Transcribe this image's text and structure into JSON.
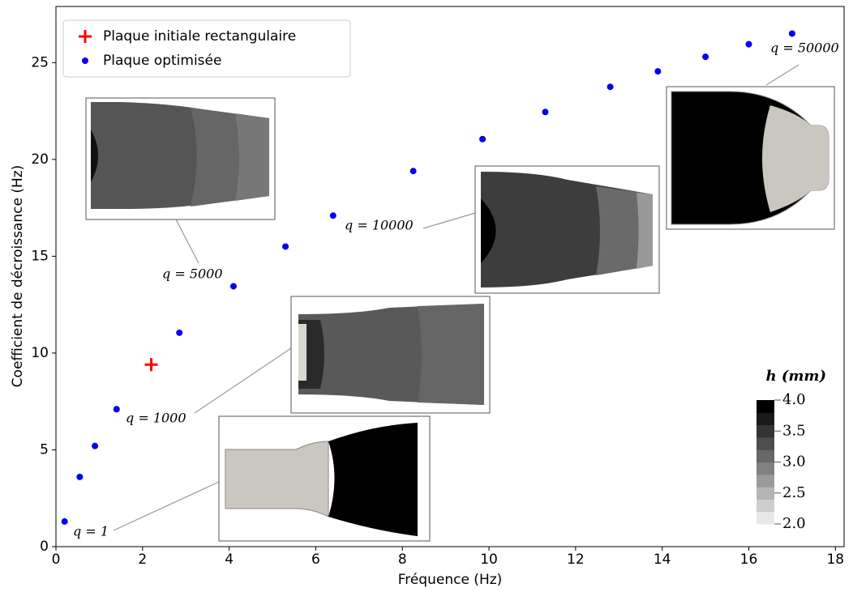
{
  "chart_data": {
    "type": "scatter",
    "xlabel": "Fréquence (Hz)",
    "ylabel": "Coefficient de décroissance (Hz)",
    "xlim": [
      0,
      18.2
    ],
    "ylim": [
      0,
      27.9
    ],
    "xticks": [
      0,
      2,
      4,
      6,
      8,
      10,
      12,
      14,
      16,
      18
    ],
    "yticks": [
      0,
      5,
      10,
      15,
      20,
      25
    ],
    "legend": "upper left",
    "series": [
      {
        "name": "Plaque initiale rectangulaire",
        "color": "#ff0000",
        "marker": "plus",
        "x": [
          2.2
        ],
        "values": [
          9.4
        ]
      },
      {
        "name": "Plaque optimisée",
        "color": "#0000ee",
        "marker": "circle",
        "x": [
          0.2,
          0.55,
          0.9,
          1.4,
          2.85,
          4.1,
          5.3,
          6.4,
          8.25,
          9.85,
          11.3,
          12.8,
          13.9,
          15.0,
          16.0,
          17.0
        ],
        "values": [
          1.3,
          3.6,
          5.2,
          7.1,
          11.05,
          13.45,
          15.5,
          17.1,
          19.4,
          21.05,
          22.45,
          23.75,
          24.55,
          25.3,
          25.95,
          26.5
        ]
      }
    ],
    "annotations": [
      "q = 1",
      "q = 1000",
      "q = 5000",
      "q = 10000",
      "q = 50000"
    ],
    "colorbar": {
      "label": "h (mm)",
      "clim": [
        2,
        4
      ],
      "ticks": [
        {
          "value": 4,
          "label": "4.0"
        },
        {
          "value": 3.5,
          "label": "3.5"
        },
        {
          "value": 3,
          "label": "3.0"
        },
        {
          "value": 2.5,
          "label": "2.5"
        },
        {
          "value": 2,
          "label": "2.0"
        }
      ]
    }
  }
}
